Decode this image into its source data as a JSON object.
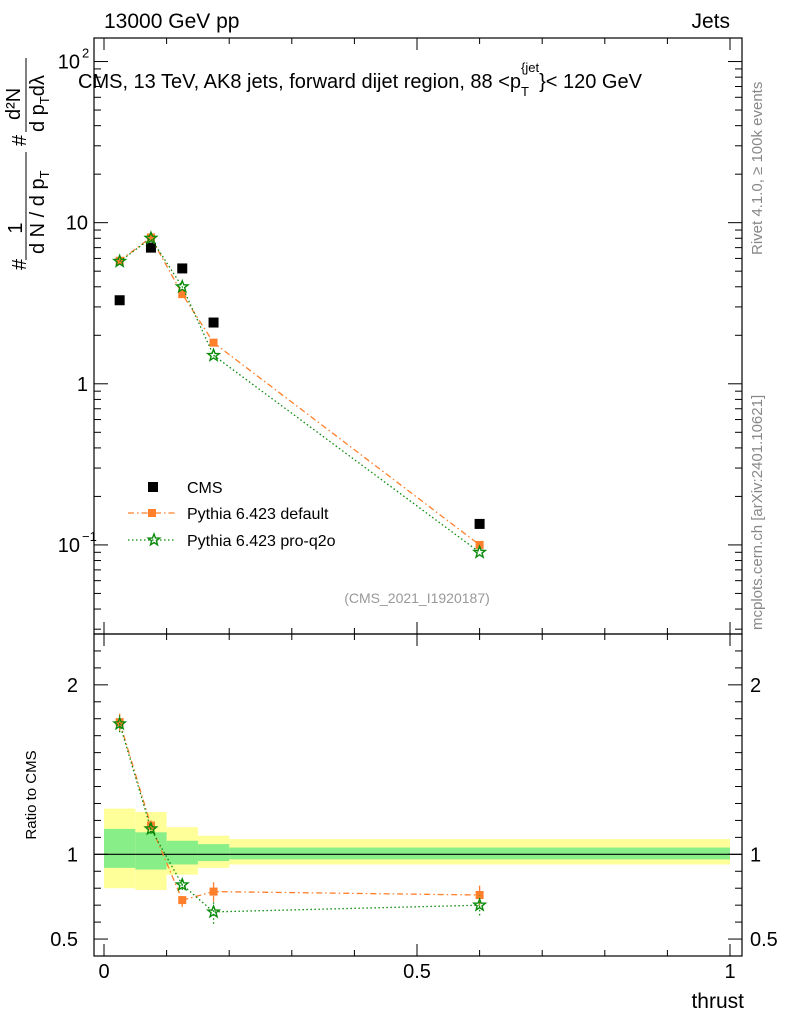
{
  "header": {
    "energy_label": "13000 GeV pp",
    "category_label": "Jets"
  },
  "side_labels": {
    "rivet": "Rivet 4.1.0, ≥ 100k events",
    "mcplots": "mcplots.cern.ch [arXiv:2401.10621]"
  },
  "main_plot": {
    "title": "CMS, 13 TeV, AK8 jets, forward dijet region, 88 <p",
    "title_sub": "T",
    "title_sup": "{jet",
    "title_tail": "}< 120 GeV",
    "analysis_id": "(CMS_2021_I1920187)",
    "ylabel_parts": [
      "#",
      "1",
      "d N / d p",
      "T",
      "#",
      "d p",
      "T",
      "dλ",
      "d²N"
    ],
    "y_ticks": [
      {
        "value": 0.1,
        "label": "10",
        "exp": "−1"
      },
      {
        "value": 1,
        "label": "1",
        "exp": ""
      },
      {
        "value": 10,
        "label": "10",
        "exp": ""
      },
      {
        "value": 100,
        "label": "10",
        "exp": "2"
      }
    ]
  },
  "ratio_plot": {
    "ylabel": "Ratio to CMS",
    "y_ticks": [
      {
        "value": 0.5,
        "label": "0.5"
      },
      {
        "value": 1,
        "label": "1"
      },
      {
        "value": 2,
        "label": "2"
      }
    ]
  },
  "x_axis": {
    "label": "thrust",
    "ticks": [
      {
        "value": 0,
        "label": "0"
      },
      {
        "value": 0.5,
        "label": "0.5"
      },
      {
        "value": 1,
        "label": "1"
      }
    ]
  },
  "legend": [
    {
      "name": "CMS",
      "color": "#000000",
      "marker": "square",
      "line": "none"
    },
    {
      "name": "Pythia 6.423 default",
      "color": "#ff7f2a",
      "marker": "square",
      "line": "dashdot"
    },
    {
      "name": "Pythia 6.423 pro-q2o",
      "color": "#0a8a0a",
      "marker": "star",
      "line": "dotted"
    }
  ],
  "chart_data": {
    "type": "scatter",
    "title": "CMS, 13 TeV, AK8 jets, forward dijet region, 88 <pT{jet}< 120 GeV",
    "xlabel": "thrust",
    "ylabel": "1/(dN/dpT) d²N/(dpT dλ)",
    "xlim": [
      0,
      1
    ],
    "ylim": [
      0.028,
      140
    ],
    "yscale": "log",
    "bin_edges": [
      0,
      0.05,
      0.1,
      0.15,
      0.2,
      1.0
    ],
    "x": [
      0.025,
      0.075,
      0.125,
      0.175,
      0.6
    ],
    "series": [
      {
        "name": "CMS",
        "values": [
          3.3,
          7.0,
          5.2,
          2.4,
          0.135
        ]
      },
      {
        "name": "Pythia 6.423 default",
        "values": [
          5.8,
          8.1,
          3.6,
          1.8,
          0.1
        ]
      },
      {
        "name": "Pythia 6.423 pro-q2o",
        "values": [
          5.75,
          8.0,
          4.0,
          1.5,
          0.09
        ]
      }
    ],
    "ratio": {
      "ylabel": "Ratio to CMS",
      "ylim": [
        0.4,
        2.3
      ],
      "band_green": [
        [
          0.92,
          1.15
        ],
        [
          0.91,
          1.13
        ],
        [
          0.94,
          1.08
        ],
        [
          0.96,
          1.06
        ],
        [
          0.97,
          1.04
        ]
      ],
      "band_yellow": [
        [
          0.8,
          1.27
        ],
        [
          0.79,
          1.25
        ],
        [
          0.88,
          1.16
        ],
        [
          0.92,
          1.11
        ],
        [
          0.94,
          1.09
        ]
      ],
      "series": [
        {
          "name": "Pythia 6.423 default",
          "values": [
            1.78,
            1.17,
            0.73,
            0.78,
            0.76
          ],
          "errors": [
            0.05,
            0.03,
            0.04,
            0.06,
            0.06
          ]
        },
        {
          "name": "Pythia 6.423 pro-q2o",
          "values": [
            1.77,
            1.15,
            0.82,
            0.66,
            0.7
          ],
          "errors": [
            0.05,
            0.03,
            0.03,
            0.07,
            0.06
          ]
        }
      ]
    }
  }
}
